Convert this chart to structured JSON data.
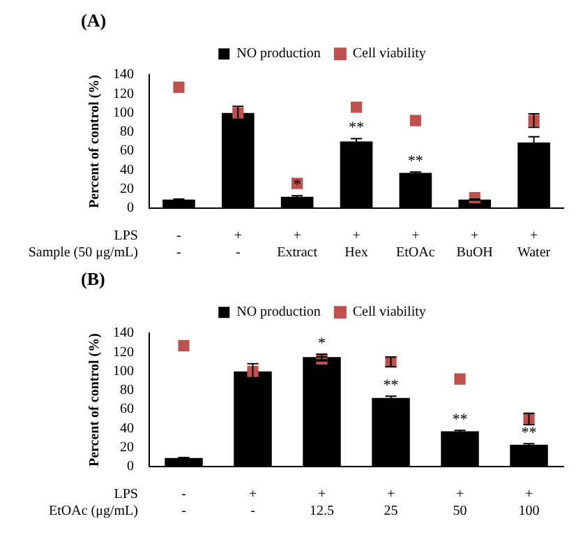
{
  "chart_data": [
    {
      "type": "bar",
      "title": "(A)",
      "ylabel": "Percent of control (%)",
      "xlabel": "LPS\nSample (50 μg/mL)",
      "categories": [
        "-\n-",
        "+\n-",
        "+\nExtract",
        "+\nHex",
        "+\nEtOAc",
        "+\nBuOH",
        "+\nWater"
      ],
      "ylim": [
        0,
        140
      ],
      "yticks": [
        0,
        20,
        40,
        60,
        80,
        100,
        120,
        140
      ],
      "grid": false,
      "legend": "top",
      "marker": "square",
      "series": [
        {
          "name": "NO production",
          "color": "#000000",
          "values": [
            9,
            100,
            12,
            70,
            37,
            9,
            69
          ],
          "errors": [
            0.5,
            7,
            1,
            3,
            1,
            0.5,
            6
          ]
        },
        {
          "name": "Cell viability",
          "type": "scatter",
          "color": "#c0504d",
          "x": [
            "-\n-",
            "+\n-",
            "+\nExtract",
            "+\nHex",
            "+\nEtOAc",
            "+\nBuOH",
            "+\nWater"
          ],
          "values": [
            127,
            100,
            26,
            106,
            92,
            11,
            92
          ],
          "errors": [
            null,
            null,
            null,
            null,
            null,
            null,
            7
          ]
        }
      ],
      "annotations": [
        {
          "text": "*",
          "x": "+\nExtract",
          "y": 12
        },
        {
          "text": "**",
          "x": "+\nHex",
          "y": 70
        },
        {
          "text": "**",
          "x": "+\nEtOAc",
          "y": 37
        }
      ]
    },
    {
      "type": "bar",
      "title": "(B)",
      "ylabel": "Percent of control (%)",
      "xlabel": "LPS\nEtOAc (μg/mL)",
      "categories": [
        "-\n-",
        "+\n-",
        "+\n12.5",
        "+\n25",
        "+\n50",
        "+\n100"
      ],
      "ylim": [
        0,
        140
      ],
      "yticks": [
        0,
        20,
        40,
        60,
        80,
        100,
        120,
        140
      ],
      "grid": false,
      "legend": "top",
      "marker": "square",
      "series": [
        {
          "name": "NO production",
          "color": "#000000",
          "values": [
            9,
            100,
            115,
            72,
            37,
            23
          ],
          "errors": [
            0.5,
            8,
            3,
            2,
            1,
            1
          ]
        },
        {
          "name": "Cell viability",
          "type": "scatter",
          "color": "#c0504d",
          "x": [
            "-\n-",
            "+\n-",
            "+\n12.5",
            "+\n25",
            "+\n50",
            "+\n100"
          ],
          "values": [
            127,
            100,
            113,
            110,
            92,
            50
          ],
          "errors": [
            null,
            null,
            2,
            5,
            null,
            6
          ]
        }
      ],
      "annotations": [
        {
          "text": "*",
          "x": "+\n12.5",
          "y": 115
        },
        {
          "text": "**",
          "x": "+\n25",
          "y": 72
        },
        {
          "text": "**",
          "x": "+\n50",
          "y": 37
        },
        {
          "text": "**",
          "x": "+\n100",
          "y": 23
        }
      ]
    }
  ]
}
